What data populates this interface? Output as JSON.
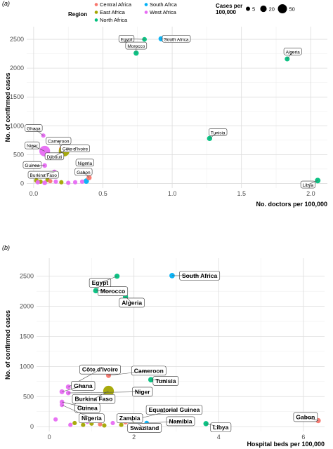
{
  "colors": {
    "Central Africa": "#f8766d",
    "East Africa": "#a3a500",
    "North Africa": "#00bf7d",
    "South Afrca": "#00b0f6",
    "West Africa": "#e76bf3"
  },
  "legend": {
    "region_title": "Region",
    "regions": [
      "Central Africa",
      "East Africa",
      "North Africa",
      "South Afrca",
      "West Africa"
    ],
    "size_title_line1": "Cases per",
    "size_title_line2": "100,000",
    "size_values": [
      5,
      20,
      50
    ]
  },
  "chart_data": [
    {
      "type": "scatter",
      "panel_label": "(a)",
      "xlabel": "No. doctors per 100,000",
      "ylabel": "No. of confirmed cases",
      "xlim": [
        -0.05,
        2.12
      ],
      "ylim": [
        -80,
        2720
      ],
      "xticks": [
        0.0,
        0.5,
        1.0,
        1.5,
        2.0
      ],
      "xtick_labels": [
        "0.0",
        "0.5",
        "1.0",
        "1.5",
        "2.0"
      ],
      "yticks": [
        0,
        500,
        1000,
        1500,
        2000,
        2500
      ],
      "ytick_labels": [
        "0",
        "500",
        "1000",
        "1500",
        "2000",
        "2500"
      ],
      "grid": true,
      "points": [
        {
          "label": "Egypt",
          "region": "North Africa",
          "x": 0.8,
          "y": 2500,
          "size": 4,
          "lx": 0.67,
          "ly": 2510,
          "lx2": 0.8
        },
        {
          "label": "South Africa",
          "region": "South Afrca",
          "x": 0.92,
          "y": 2510,
          "size": 6,
          "lx": 1.03,
          "ly": 2510
        },
        {
          "label": "Morocco",
          "region": "North Africa",
          "x": 0.74,
          "y": 2260,
          "size": 6,
          "lx": 0.74,
          "ly": 2390
        },
        {
          "label": "Algeria",
          "region": "North Africa",
          "x": 1.83,
          "y": 2160,
          "size": 5,
          "lx": 1.87,
          "ly": 2290
        },
        {
          "label": "Tunisia",
          "region": "North Africa",
          "x": 1.27,
          "y": 780,
          "size": 6,
          "lx": 1.33,
          "ly": 890
        },
        {
          "label": "Libya",
          "region": "North Africa",
          "x": 2.05,
          "y": 50,
          "size": 8,
          "lx": 1.98,
          "ly": -20
        },
        {
          "label": "Ghana",
          "region": "West Africa",
          "x": 0.07,
          "y": 830,
          "size": 3,
          "lx": 0.0,
          "ly": 960
        },
        {
          "label": "Cameroon",
          "region": "Central Africa",
          "x": 0.2,
          "y": 600,
          "size": 4,
          "lx": 0.18,
          "ly": 740
        },
        {
          "label": "Côte d'Ivoire",
          "region": "West Africa",
          "x": 0.22,
          "y": 580,
          "size": 6,
          "lx": 0.3,
          "ly": 605
        },
        {
          "label": "Niger",
          "region": "West Africa",
          "x": 0.08,
          "y": 560,
          "size": 50,
          "lx": -0.01,
          "ly": 660
        },
        {
          "label": "Djibouti",
          "region": "East Africa",
          "x": 0.22,
          "y": 560,
          "size": 50,
          "lx": 0.15,
          "ly": 470
        },
        {
          "label": "Guinea",
          "region": "West Africa",
          "x": 0.08,
          "y": 310,
          "size": 4,
          "lx": -0.01,
          "ly": 320
        },
        {
          "label": "Nigeria",
          "region": "West Africa",
          "x": 0.4,
          "y": 360,
          "size": 3,
          "lx": 0.37,
          "ly": 360
        },
        {
          "label": "Burkina Faso",
          "region": "West Africa",
          "x": 0.15,
          "y": 200,
          "size": 4,
          "lx": 0.07,
          "ly": 150
        },
        {
          "label": "Gabon",
          "region": "Central Africa",
          "x": 0.4,
          "y": 100,
          "size": 6,
          "lx": 0.36,
          "ly": 200
        },
        {
          "label": "",
          "region": "South Afrca",
          "x": 0.38,
          "y": 40,
          "size": 7
        },
        {
          "label": "",
          "region": "East Africa",
          "x": 0.02,
          "y": 50,
          "size": 4
        },
        {
          "label": "",
          "region": "East Africa",
          "x": 0.05,
          "y": 30,
          "size": 3
        },
        {
          "label": "",
          "region": "East Africa",
          "x": 0.1,
          "y": 60,
          "size": 3
        },
        {
          "label": "",
          "region": "West Africa",
          "x": 0.03,
          "y": 20,
          "size": 3
        },
        {
          "label": "",
          "region": "West Africa",
          "x": 0.08,
          "y": 10,
          "size": 4
        },
        {
          "label": "",
          "region": "West Africa",
          "x": 0.16,
          "y": 30,
          "size": 3
        },
        {
          "label": "",
          "region": "West Africa",
          "x": 0.25,
          "y": 10,
          "size": 3
        },
        {
          "label": "",
          "region": "West Africa",
          "x": 0.3,
          "y": 20,
          "size": 3
        },
        {
          "label": "",
          "region": "Central Africa",
          "x": 0.12,
          "y": 40,
          "size": 3
        },
        {
          "label": "",
          "region": "East Africa",
          "x": 0.2,
          "y": 20,
          "size": 3
        },
        {
          "label": "",
          "region": "West Africa",
          "x": 0.35,
          "y": 30,
          "size": 3
        }
      ]
    },
    {
      "type": "scatter",
      "panel_label": "(b)",
      "xlabel": "Hospital beds per 100,000",
      "ylabel": "No. of confirmed cases",
      "xlim": [
        -0.3,
        6.5
      ],
      "ylim": [
        -80,
        2800
      ],
      "xticks": [
        0,
        2,
        4,
        6
      ],
      "xtick_labels": [
        "0",
        "2",
        "4",
        "6"
      ],
      "yticks": [
        0,
        500,
        1000,
        1500,
        2000,
        2500
      ],
      "ytick_labels": [
        "0",
        "500",
        "1000",
        "1500",
        "2000",
        "2500"
      ],
      "grid": true,
      "points": [
        {
          "label": "Egypt",
          "region": "North Africa",
          "x": 1.6,
          "y": 2500,
          "size": 6,
          "lx": 1.2,
          "ly": 2390
        },
        {
          "label": "South Africa",
          "region": "South Afrca",
          "x": 2.9,
          "y": 2510,
          "size": 7,
          "lx": 3.55,
          "ly": 2510
        },
        {
          "label": "Morocco",
          "region": "North Africa",
          "x": 1.1,
          "y": 2260,
          "size": 7,
          "lx": 1.5,
          "ly": 2250
        },
        {
          "label": "Algeria",
          "region": "North Africa",
          "x": 1.8,
          "y": 2160,
          "size": 6,
          "lx": 1.95,
          "ly": 2060
        },
        {
          "label": "Tunisia",
          "region": "North Africa",
          "x": 2.4,
          "y": 780,
          "size": 7,
          "lx": 2.75,
          "ly": 760
        },
        {
          "label": "Libya",
          "region": "North Africa",
          "x": 3.7,
          "y": 50,
          "size": 6,
          "lx": 4.05,
          "ly": -10
        },
        {
          "label": "Gabon",
          "region": "Central Africa",
          "x": 6.35,
          "y": 100,
          "size": 6,
          "lx": 6.05,
          "ly": 160
        },
        {
          "label": "Côte d'Ivoire",
          "region": "West Africa",
          "x": 0.45,
          "y": 660,
          "size": 5,
          "lx": 1.2,
          "ly": 950
        },
        {
          "label": "Cameroon",
          "region": "Central Africa",
          "x": 1.4,
          "y": 850,
          "size": 5,
          "lx": 2.35,
          "ly": 930
        },
        {
          "label": "Ghana",
          "region": "West Africa",
          "x": 0.3,
          "y": 580,
          "size": 5,
          "lx": 0.8,
          "ly": 680
        },
        {
          "label": "Niger",
          "region": "West Africa",
          "x": 0.45,
          "y": 560,
          "size": 4,
          "lx": 2.2,
          "ly": 580
        },
        {
          "label": "Burkina Faso",
          "region": "East Africa",
          "x": 1.4,
          "y": 590,
          "size": 50,
          "lx": 1.05,
          "ly": 460
        },
        {
          "label": "Guinea",
          "region": "West Africa",
          "x": 0.3,
          "y": 410,
          "size": 4,
          "lx": 0.9,
          "ly": 310
        },
        {
          "label": "Nigeria",
          "region": "West Africa",
          "x": 0.3,
          "y": 360,
          "size": 3,
          "lx": 1.0,
          "ly": 140
        },
        {
          "label": "Equatorial Guinea",
          "region": "Central Africa",
          "x": 1.8,
          "y": 80,
          "size": 6,
          "lx": 2.95,
          "ly": 280
        },
        {
          "label": "Zambia",
          "region": "East Africa",
          "x": 2.0,
          "y": 70,
          "size": 4,
          "lx": 1.9,
          "ly": 140
        },
        {
          "label": "Namibia",
          "region": "South Afrca",
          "x": 2.3,
          "y": 60,
          "size": 4,
          "lx": 3.1,
          "ly": 90
        },
        {
          "label": "Swaziland",
          "region": "South Afrca",
          "x": 2.1,
          "y": 40,
          "size": 5,
          "lx": 2.25,
          "ly": -20
        },
        {
          "label": "",
          "region": "West Africa",
          "x": 0.15,
          "y": 120,
          "size": 3
        },
        {
          "label": "",
          "region": "West Africa",
          "x": 0.5,
          "y": 30,
          "size": 3
        },
        {
          "label": "",
          "region": "East Africa",
          "x": 0.6,
          "y": 60,
          "size": 3
        },
        {
          "label": "",
          "region": "East Africa",
          "x": 0.8,
          "y": 30,
          "size": 3
        },
        {
          "label": "",
          "region": "East Africa",
          "x": 1.0,
          "y": 50,
          "size": 3
        },
        {
          "label": "",
          "region": "West Africa",
          "x": 0.9,
          "y": 80,
          "size": 3
        },
        {
          "label": "",
          "region": "Central Africa",
          "x": 1.2,
          "y": 40,
          "size": 3
        },
        {
          "label": "",
          "region": "East Africa",
          "x": 1.3,
          "y": 20,
          "size": 3
        },
        {
          "label": "",
          "region": "West Africa",
          "x": 1.5,
          "y": 60,
          "size": 3
        },
        {
          "label": "",
          "region": "East Africa",
          "x": 1.7,
          "y": 30,
          "size": 3
        }
      ]
    }
  ]
}
